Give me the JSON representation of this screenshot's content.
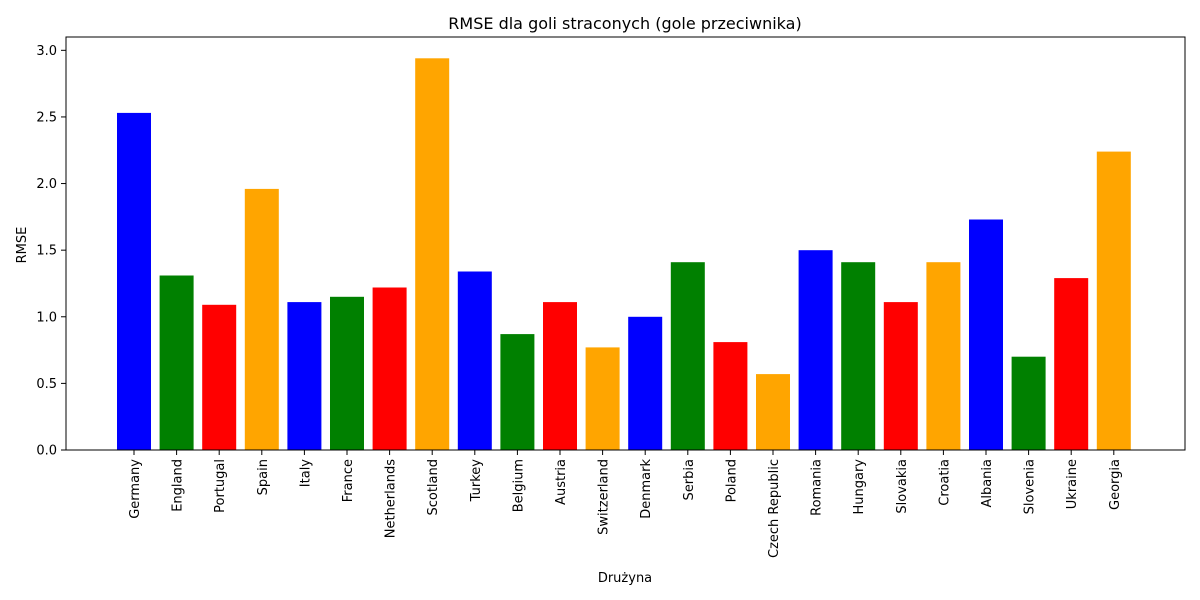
{
  "chart_data": {
    "type": "bar",
    "title": "RMSE dla goli straconych (gole przeciwnika)",
    "xlabel": "Drużyna",
    "ylabel": "RMSE",
    "ylim": [
      0,
      3.1
    ],
    "yticks": [
      "0.0",
      "0.5",
      "1.0",
      "1.5",
      "2.0",
      "2.5",
      "3.0"
    ],
    "categories": [
      "Germany",
      "England",
      "Portugal",
      "Spain",
      "Italy",
      "France",
      "Netherlands",
      "Scotland",
      "Turkey",
      "Belgium",
      "Austria",
      "Switzerland",
      "Denmark",
      "Serbia",
      "Poland",
      "Czech Republic",
      "Romania",
      "Hungary",
      "Slovakia",
      "Croatia",
      "Albania",
      "Slovenia",
      "Ukraine",
      "Georgia"
    ],
    "values": [
      2.53,
      1.31,
      1.09,
      1.96,
      1.11,
      1.15,
      1.22,
      2.94,
      1.34,
      0.87,
      1.11,
      0.77,
      1.0,
      1.41,
      0.81,
      0.57,
      1.5,
      1.41,
      1.11,
      1.41,
      1.73,
      0.7,
      1.29,
      2.24
    ],
    "colors": [
      "#0000ff",
      "#008000",
      "#ff0000",
      "#ffa500"
    ],
    "grid": false,
    "legend": "none"
  }
}
